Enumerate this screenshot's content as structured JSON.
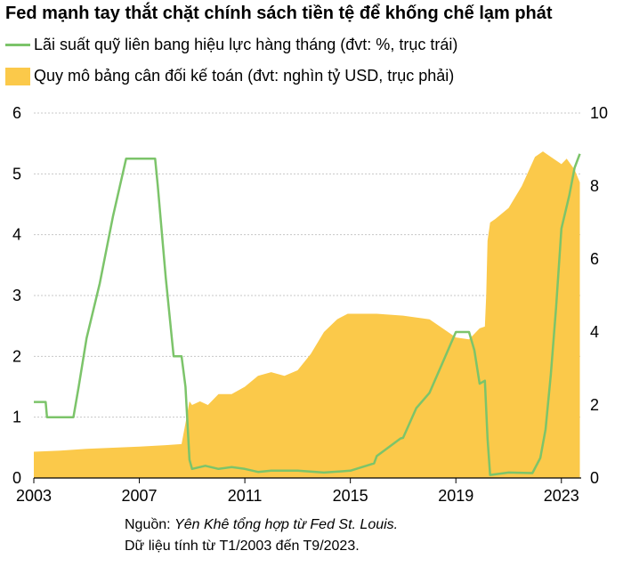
{
  "chart_data": {
    "type": "line",
    "title": "Fed mạnh tay thắt chặt chính sách tiền tệ để khống chế lạm phát",
    "legend": {
      "line": "Lãi suất quỹ liên bang hiệu lực hàng tháng (đvt: %, trục trái)",
      "area": "Quy mô bảng cân đối kế toán (đvt: nghìn tỷ USD, trục phải)"
    },
    "colors": {
      "line": "#7cc46a",
      "area": "#fbc94a",
      "grid": "#c8c8c8"
    },
    "x_ticks": [
      "2003",
      "2007",
      "2011",
      "2015",
      "2019",
      "2023"
    ],
    "y_left_ticks": [
      "0",
      "1",
      "2",
      "3",
      "4",
      "5",
      "6"
    ],
    "y_right_ticks": [
      "0",
      "2",
      "4",
      "6",
      "8",
      "10"
    ],
    "xlim": [
      2003.0,
      2023.75
    ],
    "ylim_left": [
      0,
      6
    ],
    "ylim_right": [
      0,
      10
    ],
    "grid": "horizontal",
    "series": [
      {
        "name": "Lãi suất quỹ liên bang hiệu lực hàng tháng (đvt: %, trục trái)",
        "kind": "line",
        "axis": "left",
        "x": [
          2003.0,
          2003.45,
          2003.5,
          2004.0,
          2004.5,
          2004.7,
          2005.0,
          2005.5,
          2006.0,
          2006.5,
          2007.6,
          2007.7,
          2008.0,
          2008.3,
          2008.6,
          2008.75,
          2008.9,
          2009.0,
          2009.5,
          2010.0,
          2010.5,
          2011.0,
          2011.5,
          2012.0,
          2013.0,
          2014.0,
          2015.0,
          2015.9,
          2016.0,
          2016.9,
          2017.0,
          2017.5,
          2018.0,
          2018.5,
          2019.0,
          2019.5,
          2019.7,
          2019.9,
          2020.1,
          2020.2,
          2020.3,
          2021.0,
          2021.9,
          2022.2,
          2022.4,
          2022.6,
          2022.8,
          2023.0,
          2023.3,
          2023.5,
          2023.7
        ],
        "y": [
          1.25,
          1.25,
          1.0,
          1.0,
          1.0,
          1.5,
          2.3,
          3.2,
          4.3,
          5.25,
          5.25,
          4.8,
          3.3,
          2.0,
          2.0,
          1.5,
          0.3,
          0.15,
          0.2,
          0.15,
          0.18,
          0.15,
          0.1,
          0.12,
          0.12,
          0.09,
          0.12,
          0.24,
          0.36,
          0.65,
          0.66,
          1.15,
          1.4,
          1.9,
          2.4,
          2.4,
          2.1,
          1.55,
          1.6,
          0.65,
          0.05,
          0.09,
          0.08,
          0.33,
          0.8,
          1.7,
          2.8,
          4.1,
          4.65,
          5.1,
          5.33
        ]
      },
      {
        "name": "Quy mô bảng cân đối kế toán (đvt: nghìn tỷ USD, trục phải)",
        "kind": "area",
        "axis": "right",
        "x": [
          2003.0,
          2004.0,
          2005.0,
          2006.0,
          2007.0,
          2008.0,
          2008.6,
          2008.75,
          2008.9,
          2009.0,
          2009.3,
          2009.6,
          2010.0,
          2010.5,
          2011.0,
          2011.5,
          2012.0,
          2012.5,
          2013.0,
          2013.5,
          2014.0,
          2014.5,
          2014.9,
          2016.0,
          2017.0,
          2018.0,
          2019.0,
          2019.5,
          2019.9,
          2020.1,
          2020.15,
          2020.2,
          2020.3,
          2020.5,
          2021.0,
          2021.5,
          2022.0,
          2022.3,
          2022.6,
          2023.0,
          2023.2,
          2023.5,
          2023.7
        ],
        "y": [
          0.72,
          0.75,
          0.8,
          0.83,
          0.86,
          0.9,
          0.93,
          1.5,
          2.1,
          2.0,
          2.1,
          2.0,
          2.3,
          2.3,
          2.5,
          2.8,
          2.9,
          2.8,
          2.95,
          3.4,
          4.0,
          4.35,
          4.5,
          4.5,
          4.45,
          4.35,
          3.85,
          3.8,
          4.1,
          4.15,
          5.0,
          6.5,
          7.0,
          7.1,
          7.4,
          8.0,
          8.8,
          8.95,
          8.8,
          8.6,
          8.75,
          8.45,
          8.1
        ]
      }
    ]
  },
  "source": {
    "prefix": "Nguồn: ",
    "italic": "Yên Khê tổng hợp từ Fed St. Louis.",
    "line2": "Dữ liệu tính từ T1/2003 đến T9/2023."
  }
}
